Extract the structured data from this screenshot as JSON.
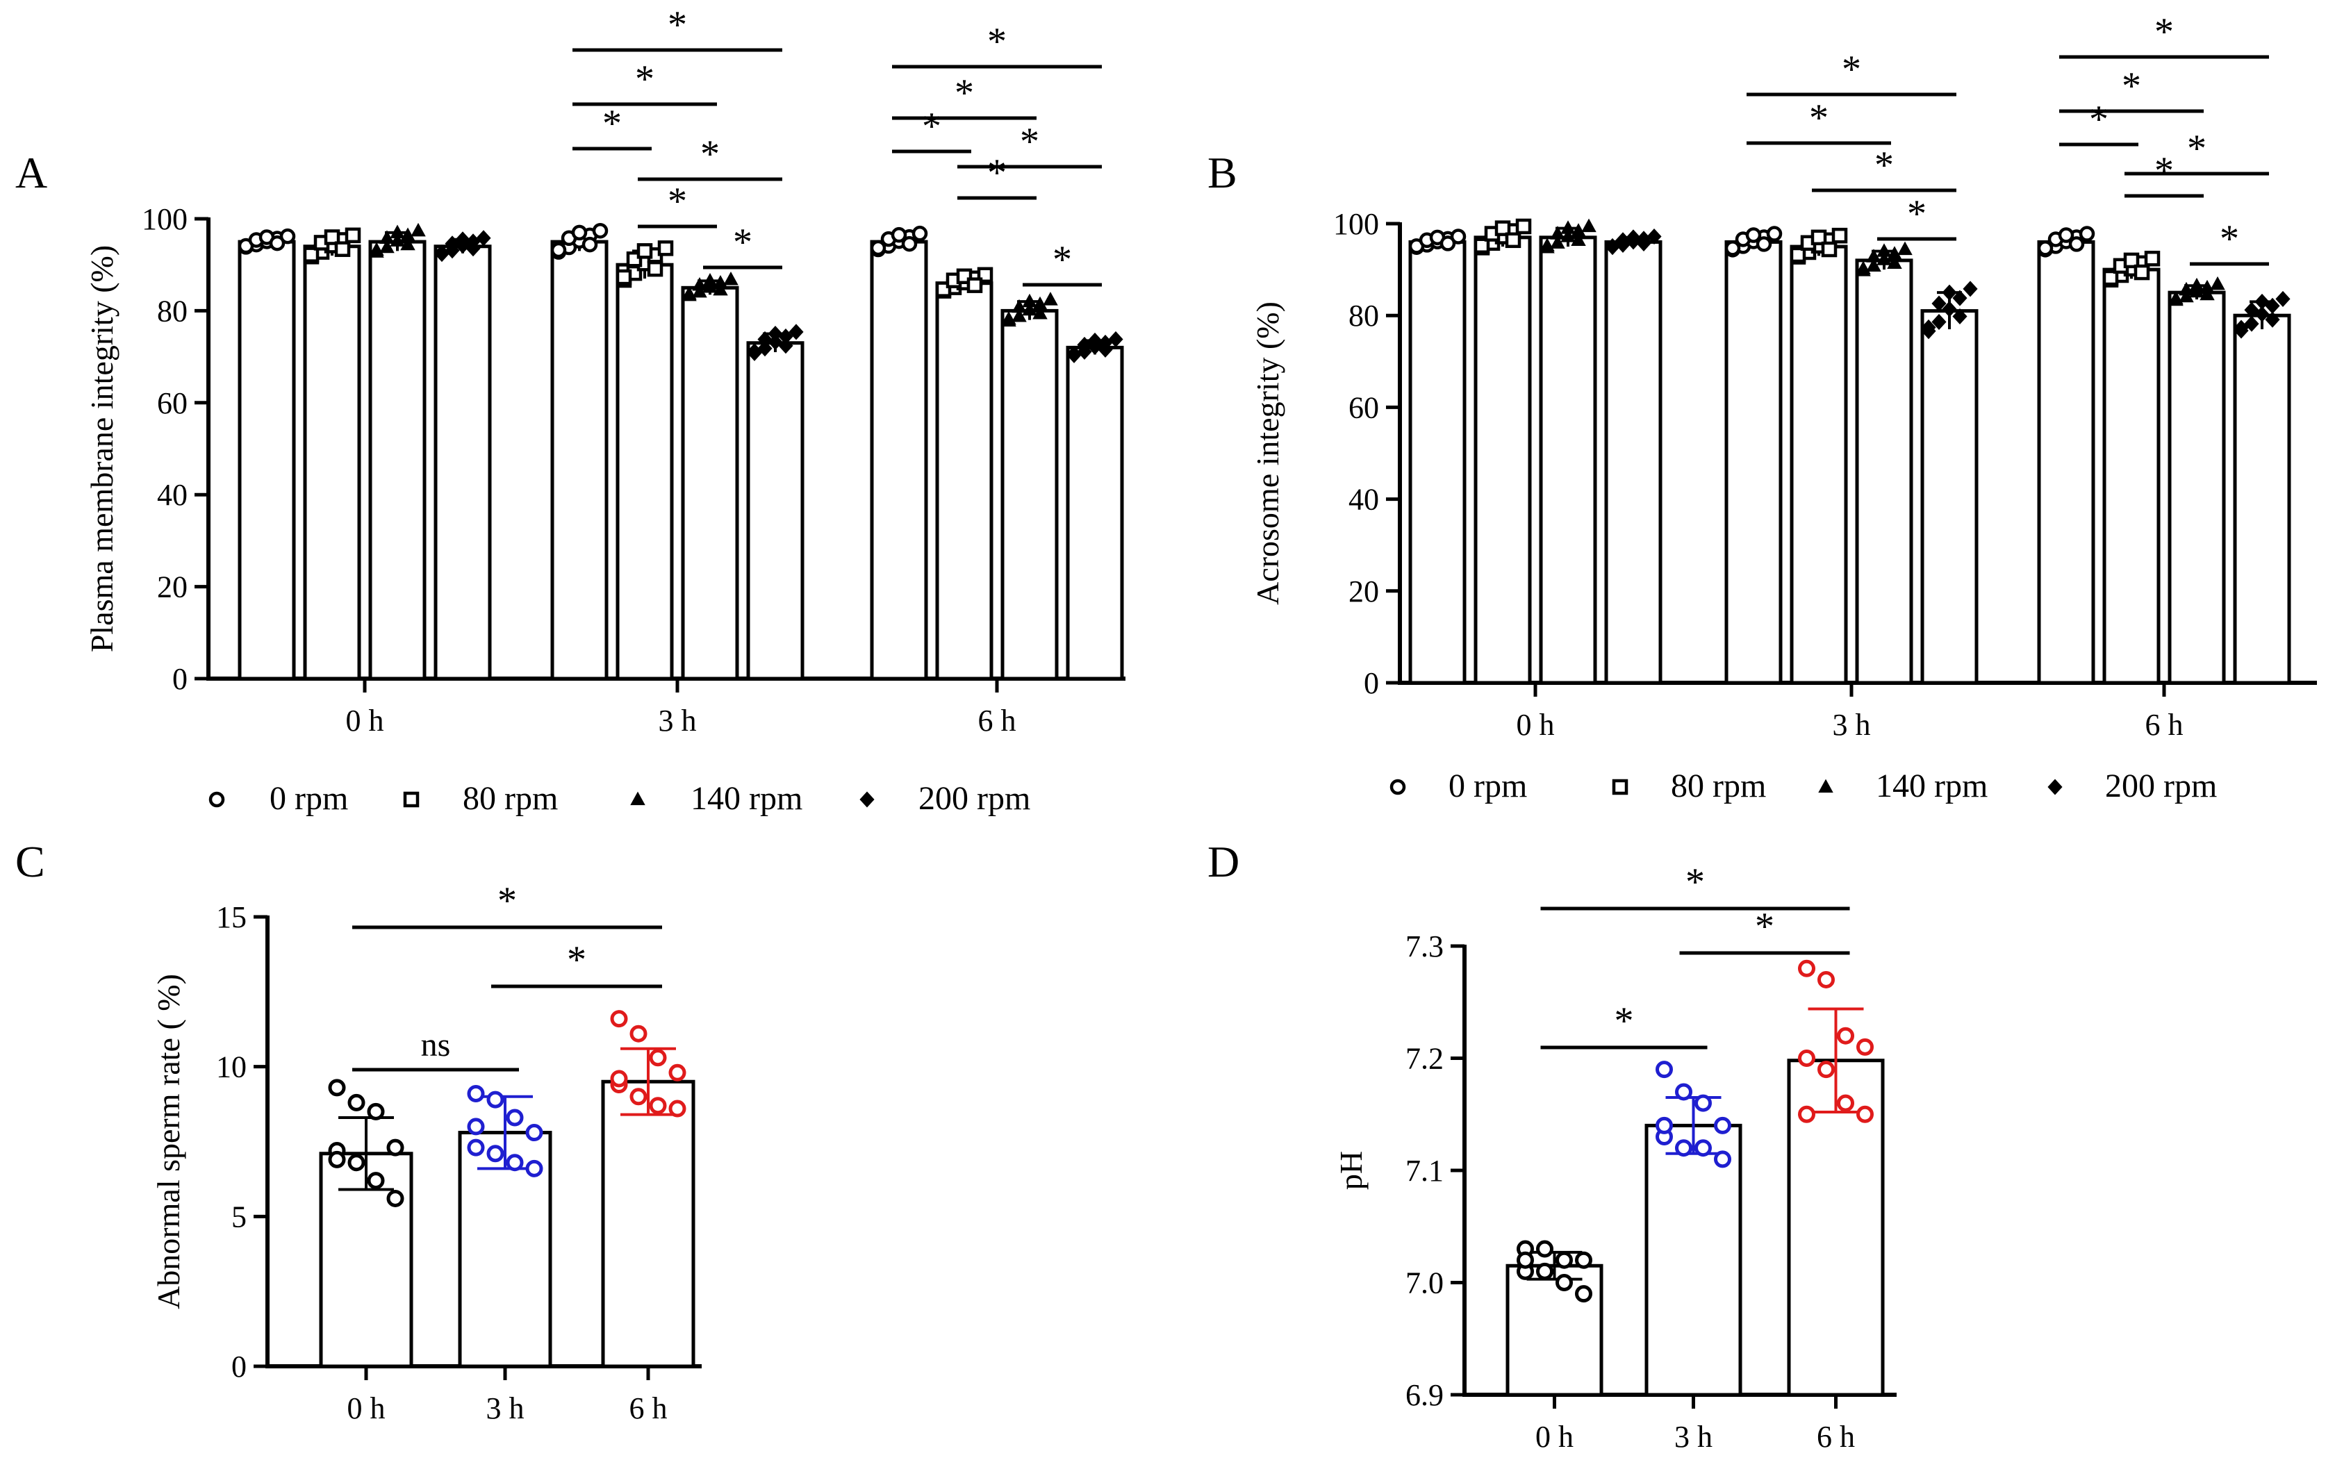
{
  "figure": {
    "panels": {
      "A": "A",
      "B": "B",
      "C": "C",
      "D": "D"
    }
  },
  "legend": [
    {
      "label": "0 rpm",
      "marker": "circle"
    },
    {
      "label": "80 rpm",
      "marker": "square"
    },
    {
      "label": "140 rpm",
      "marker": "triangle"
    },
    {
      "label": "200 rpm",
      "marker": "diamond"
    }
  ],
  "chart_data": [
    {
      "panel": "A",
      "type": "bar",
      "ylabel": "Plasma membrane integrity (%)",
      "xlabel": "",
      "categories": [
        "0 h",
        "3 h",
        "6 h"
      ],
      "ylim": [
        0,
        100
      ],
      "yticks": [
        "0",
        "20",
        "40",
        "60",
        "80",
        "100"
      ],
      "series": [
        {
          "name": "0 rpm",
          "marker": "circle",
          "values": [
            95,
            95,
            95
          ],
          "errors": [
            1,
            2,
            1.5
          ]
        },
        {
          "name": "80 rpm",
          "marker": "square",
          "values": [
            94,
            90,
            86
          ],
          "errors": [
            2,
            3,
            1.5
          ]
        },
        {
          "name": "140 rpm",
          "marker": "triangle",
          "values": [
            95,
            85,
            80
          ],
          "errors": [
            2,
            1.5,
            2
          ]
        },
        {
          "name": "200 rpm",
          "marker": "diamond",
          "values": [
            94,
            73,
            72
          ],
          "errors": [
            1.5,
            2,
            1.5
          ]
        }
      ],
      "significance": [
        {
          "group": 1,
          "from": 0,
          "to": 1,
          "label": "*"
        },
        {
          "group": 1,
          "from": 0,
          "to": 2,
          "label": "*"
        },
        {
          "group": 1,
          "from": 0,
          "to": 3,
          "label": "*"
        },
        {
          "group": 1,
          "from": 1,
          "to": 2,
          "label": "*"
        },
        {
          "group": 1,
          "from": 1,
          "to": 3,
          "label": "*"
        },
        {
          "group": 1,
          "from": 2,
          "to": 3,
          "label": "*"
        },
        {
          "group": 2,
          "from": 0,
          "to": 1,
          "label": "*"
        },
        {
          "group": 2,
          "from": 0,
          "to": 2,
          "label": "*"
        },
        {
          "group": 2,
          "from": 0,
          "to": 3,
          "label": "*"
        },
        {
          "group": 2,
          "from": 1,
          "to": 2,
          "label": "*"
        },
        {
          "group": 2,
          "from": 1,
          "to": 3,
          "label": "*"
        },
        {
          "group": 2,
          "from": 2,
          "to": 3,
          "label": "*"
        }
      ]
    },
    {
      "panel": "B",
      "type": "bar",
      "ylabel": "Acrosome integrity (%)",
      "xlabel": "",
      "categories": [
        "0 h",
        "3 h",
        "6 h"
      ],
      "ylim": [
        0,
        100
      ],
      "yticks": [
        "0",
        "20",
        "40",
        "60",
        "80",
        "100"
      ],
      "series": [
        {
          "name": "0 rpm",
          "marker": "circle",
          "values": [
            96,
            96,
            96
          ],
          "errors": [
            1,
            1.5,
            1.5
          ]
        },
        {
          "name": "80 rpm",
          "marker": "square",
          "values": [
            97,
            95,
            90
          ],
          "errors": [
            2,
            2,
            2
          ]
        },
        {
          "name": "140 rpm",
          "marker": "triangle",
          "values": [
            97,
            92,
            85
          ],
          "errors": [
            2,
            2,
            1.5
          ]
        },
        {
          "name": "200 rpm",
          "marker": "diamond",
          "values": [
            96,
            81,
            80
          ],
          "errors": [
            1,
            4,
            3
          ]
        }
      ],
      "significance": [
        {
          "group": 1,
          "from": 0,
          "to": 3,
          "label": "*"
        },
        {
          "group": 1,
          "from": 0,
          "to": 2,
          "label": "*"
        },
        {
          "group": 1,
          "from": 1,
          "to": 3,
          "label": "*"
        },
        {
          "group": 1,
          "from": 2,
          "to": 3,
          "label": "*"
        },
        {
          "group": 2,
          "from": 0,
          "to": 1,
          "label": "*"
        },
        {
          "group": 2,
          "from": 0,
          "to": 2,
          "label": "*"
        },
        {
          "group": 2,
          "from": 0,
          "to": 3,
          "label": "*"
        },
        {
          "group": 2,
          "from": 1,
          "to": 2,
          "label": "*"
        },
        {
          "group": 2,
          "from": 1,
          "to": 3,
          "label": "*"
        },
        {
          "group": 2,
          "from": 2,
          "to": 3,
          "label": "*"
        }
      ]
    },
    {
      "panel": "C",
      "type": "bar",
      "ylabel": "Abnormal sperm rate ( %)",
      "xlabel": "",
      "categories": [
        "0 h",
        "3 h",
        "6 h"
      ],
      "ylim": [
        0,
        15
      ],
      "yticks": [
        "0",
        "5",
        "10",
        "15"
      ],
      "values": [
        7.1,
        7.8,
        9.5
      ],
      "errors": [
        1.2,
        1.2,
        1.1
      ],
      "colors": [
        "#000000",
        "#1f1fd0",
        "#e01b1b"
      ],
      "points": [
        [
          9.3,
          8.8,
          8.5,
          7.3,
          7.2,
          6.8,
          6.2,
          5.6,
          6.9
        ],
        [
          9.1,
          8.9,
          8.3,
          7.8,
          7.3,
          7.1,
          6.8,
          6.6,
          8.0
        ],
        [
          11.6,
          11.1,
          10.3,
          9.8,
          9.4,
          9.0,
          8.7,
          8.6,
          9.6
        ]
      ],
      "significance": [
        {
          "from": 0,
          "to": 1,
          "label": "ns"
        },
        {
          "from": 1,
          "to": 2,
          "label": "*"
        },
        {
          "from": 0,
          "to": 2,
          "label": "*"
        }
      ]
    },
    {
      "panel": "D",
      "type": "bar",
      "ylabel": "pH",
      "xlabel": "",
      "categories": [
        "0 h",
        "3 h",
        "6 h"
      ],
      "ylim": [
        6.9,
        7.3
      ],
      "yticks": [
        "6.9",
        "7.0",
        "7.1",
        "7.2",
        "7.3"
      ],
      "values": [
        7.015,
        7.14,
        7.198
      ],
      "errors": [
        0.012,
        0.025,
        0.046
      ],
      "colors": [
        "#000000",
        "#1f1fd0",
        "#e01b1b"
      ],
      "points": [
        [
          7.03,
          7.03,
          7.02,
          7.02,
          7.01,
          7.01,
          7.0,
          6.99,
          7.02
        ],
        [
          7.19,
          7.17,
          7.16,
          7.14,
          7.13,
          7.12,
          7.12,
          7.11,
          7.14
        ],
        [
          7.28,
          7.27,
          7.22,
          7.21,
          7.2,
          7.19,
          7.16,
          7.15,
          7.15
        ]
      ],
      "significance": [
        {
          "from": 0,
          "to": 1,
          "label": "*"
        },
        {
          "from": 1,
          "to": 2,
          "label": "*"
        },
        {
          "from": 0,
          "to": 2,
          "label": "*"
        }
      ]
    }
  ]
}
